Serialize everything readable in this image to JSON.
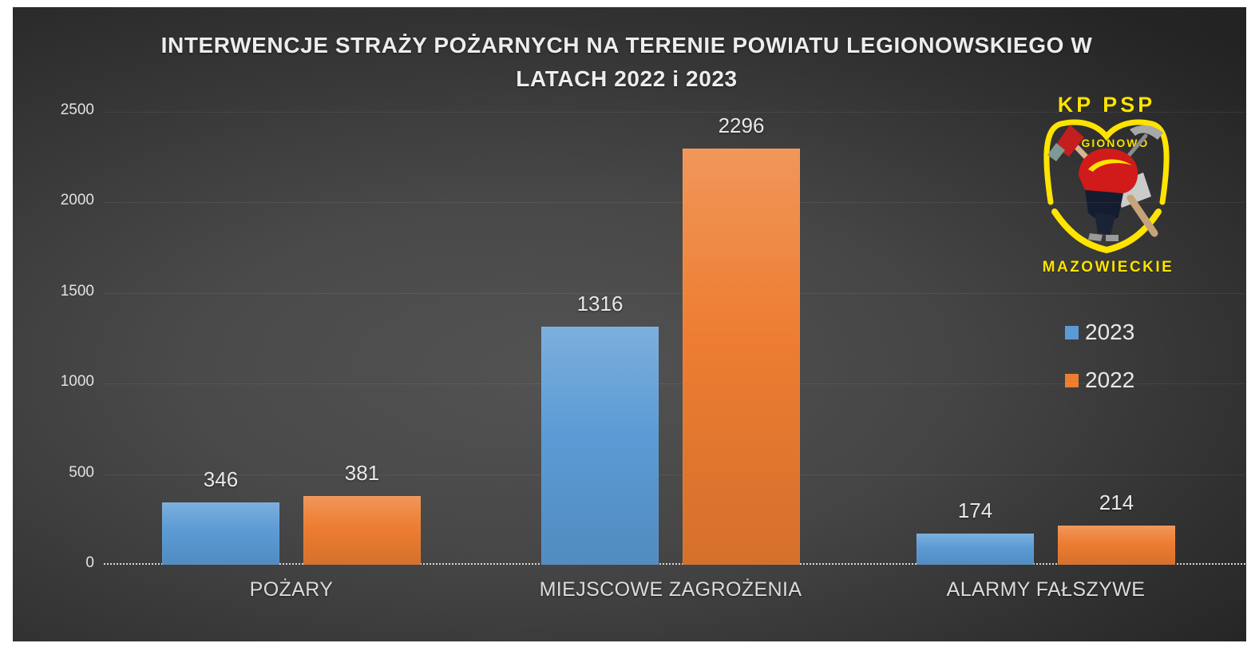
{
  "slide": {
    "title_line1": "INTERWENCJE STRAŻY POŻARNYCH NA TERENIE POWIATU LEGIONOWSKIEGO W",
    "title_line2": "LATACH 2022 i 2023"
  },
  "chart_data": {
    "type": "bar",
    "title": "INTERWENCJE STRAŻY POŻARNYCH NA TERENIE POWIATU LEGIONOWSKIEGO W LATACH 2022 i 2023",
    "categories": [
      "POŻARY",
      "MIEJSCOWE ZAGROŻENIA",
      "ALARMY FAŁSZYWE"
    ],
    "series": [
      {
        "name": "2023",
        "color": "#5B9BD5",
        "values": [
          346,
          1316,
          174
        ]
      },
      {
        "name": "2022",
        "color": "#ED7D31",
        "values": [
          381,
          2296,
          214
        ]
      }
    ],
    "ylim": [
      0,
      2500
    ],
    "yticks": [
      0,
      500,
      1000,
      1500,
      2000,
      2500
    ],
    "grid": "faint horizontal gridlines, dotted baseline at 0",
    "legend_position": "right",
    "data_labels": true,
    "background": "dark gray gradient slide"
  },
  "logo": {
    "top_text": "KP PSP",
    "shield_text": "LEGIONOWO",
    "bottom_text": "MAZOWIECKIE",
    "accent_color": "#FFE400"
  },
  "colors": {
    "bar_2023": "#5B9BD5",
    "bar_2022": "#ED7D31",
    "slide_background_dark": "#2a2a2a",
    "slide_background_light": "#535353",
    "text_light": "#ededed"
  }
}
